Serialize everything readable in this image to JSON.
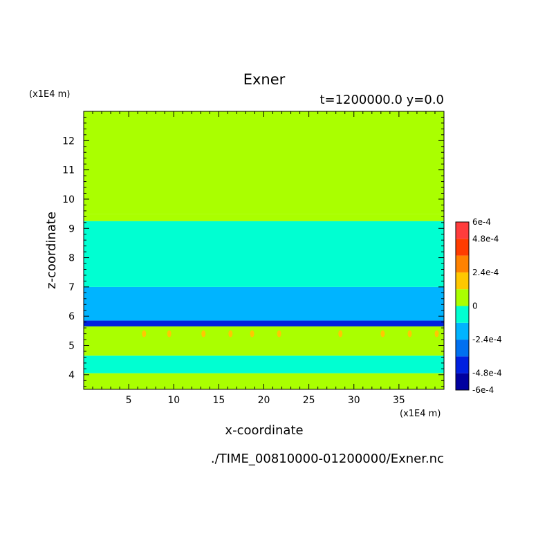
{
  "chart_data": {
    "type": "heatmap",
    "title": "Exner",
    "subtitle": "t=1200000.0 y=0.0",
    "xlabel": "x-coordinate",
    "ylabel": "z-coordinate",
    "x_scale_note": "(x1E4 m)",
    "y_scale_note": "(x1E4 m)",
    "source_file": "./TIME_00810000-01200000/Exner.nc",
    "xlim": [
      0,
      40
    ],
    "ylim": [
      3.5,
      13
    ],
    "x_ticks": [
      5,
      10,
      15,
      20,
      25,
      30,
      35
    ],
    "y_ticks": [
      4,
      5,
      6,
      7,
      8,
      9,
      10,
      11,
      12
    ],
    "colorbar": {
      "levels": [
        -0.0006,
        -0.00048,
        -0.00036,
        -0.00024,
        -0.00012,
        0,
        0.00012,
        0.00024,
        0.00036,
        0.00048,
        0.0006
      ],
      "colors": [
        "#0000a0",
        "#0020e0",
        "#0070f0",
        "#00b4ff",
        "#00ffd2",
        "#aaff00",
        "#ffc800",
        "#ff8200",
        "#ff3c00",
        "#ff3c3c"
      ],
      "tick_labels": [
        "6e-4",
        "4.8e-4",
        "2.4e-4",
        "0",
        "-2.4e-4",
        "-4.8e-4",
        "-6e-4"
      ],
      "tick_values": [
        0.0006,
        0.00048,
        0.00024,
        0,
        -0.00024,
        -0.00048,
        -0.0006
      ]
    },
    "bands": [
      {
        "z_from": 3.5,
        "z_to": 4.05,
        "value": 0.0
      },
      {
        "z_from": 4.05,
        "z_to": 4.65,
        "value": -6e-05
      },
      {
        "z_from": 4.65,
        "z_to": 5.65,
        "value": 0.0
      },
      {
        "z_from": 5.65,
        "z_to": 5.85,
        "value": -0.00042
      },
      {
        "z_from": 5.85,
        "z_to": 7.0,
        "value": -0.00018
      },
      {
        "z_from": 7.0,
        "z_to": 9.25,
        "value": -6e-05
      },
      {
        "z_from": 9.25,
        "z_to": 9.5,
        "value": 0.0
      },
      {
        "z_from": 9.5,
        "z_to": 13.0,
        "value": 0.0
      }
    ],
    "spots": [
      {
        "x": 6.7,
        "z": 5.4,
        "value": 0.00018
      },
      {
        "x": 9.5,
        "z": 5.4,
        "value": 0.00018
      },
      {
        "x": 13.3,
        "z": 5.4,
        "value": 0.00018
      },
      {
        "x": 16.3,
        "z": 5.4,
        "value": 0.00018
      },
      {
        "x": 18.7,
        "z": 5.4,
        "value": 0.00018
      },
      {
        "x": 21.7,
        "z": 5.4,
        "value": 0.00018
      },
      {
        "x": 28.5,
        "z": 5.4,
        "value": 0.00018
      },
      {
        "x": 33.2,
        "z": 5.4,
        "value": 0.00018
      },
      {
        "x": 36.2,
        "z": 5.4,
        "value": 0.00018
      },
      {
        "x": 39.2,
        "z": 5.4,
        "value": 0.00018
      }
    ]
  }
}
